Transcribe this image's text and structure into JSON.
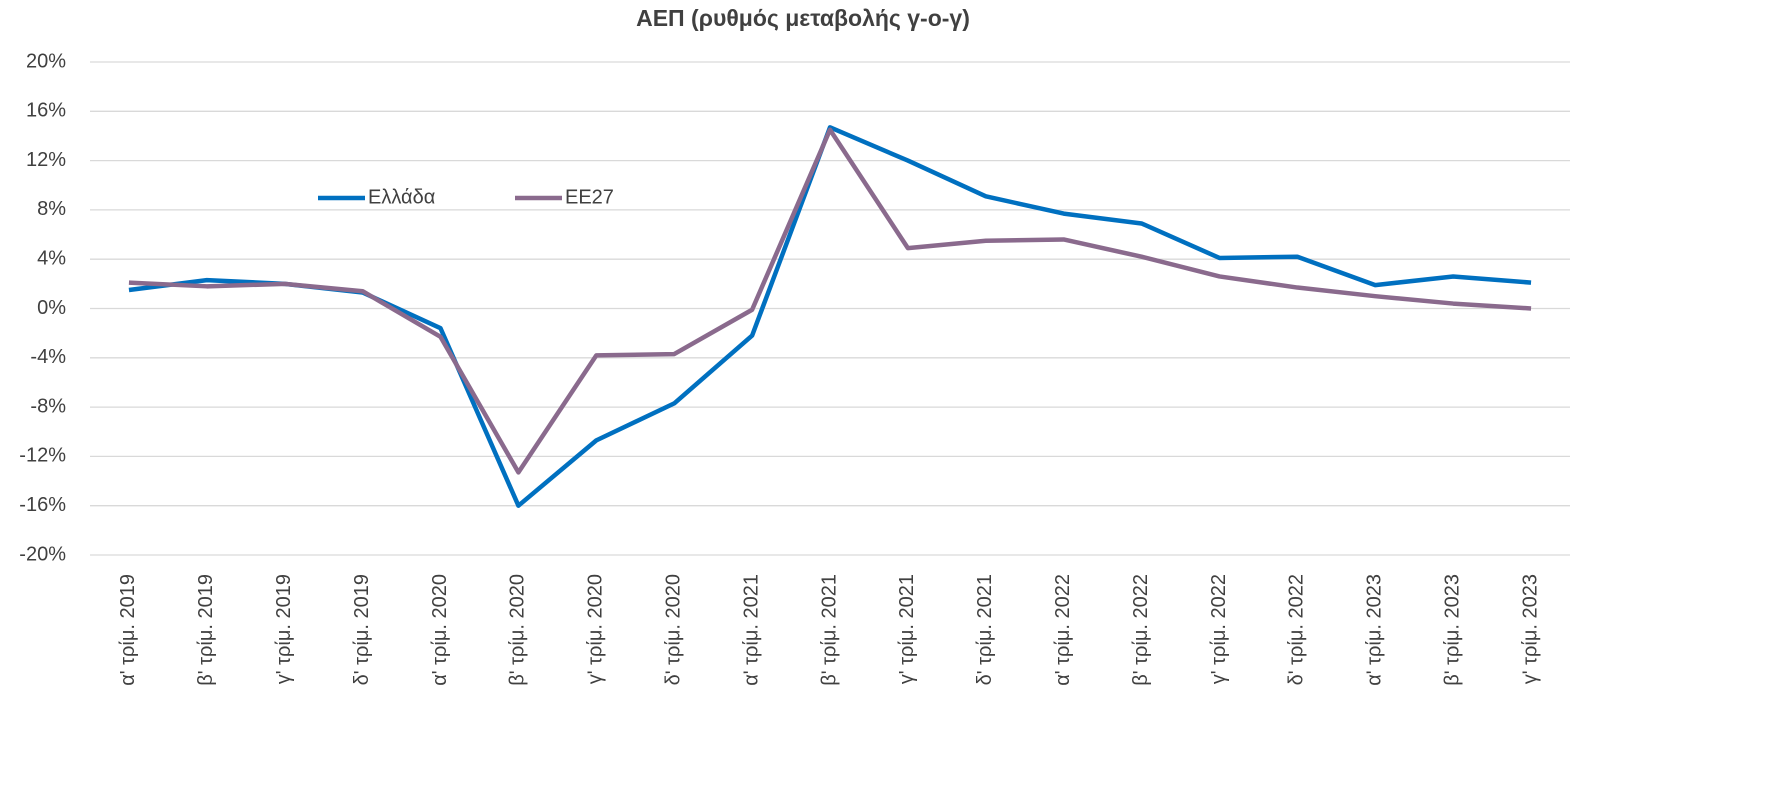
{
  "chart_data": {
    "type": "line",
    "title": "ΑΕΠ (ρυθμός μεταβολής γ-ο-γ)",
    "categories": [
      "α' τρίμ. 2019",
      "β' τρίμ. 2019",
      "γ' τρίμ. 2019",
      "δ' τρίμ. 2019",
      "α' τρίμ. 2020",
      "β' τρίμ. 2020",
      "γ' τρίμ. 2020",
      "δ' τρίμ. 2020",
      "α' τρίμ. 2021",
      "β' τρίμ. 2021",
      "γ' τρίμ. 2021",
      "δ' τρίμ. 2021",
      "α' τρίμ. 2022",
      "β' τρίμ. 2022",
      "γ' τρίμ. 2022",
      "δ' τρίμ. 2022",
      "α' τρίμ. 2023",
      "β' τρίμ. 2023",
      "γ' τρίμ. 2023"
    ],
    "series": [
      {
        "name": "Ελλάδα",
        "color": "#0070c0",
        "values": [
          1.5,
          2.3,
          2.0,
          1.3,
          -1.6,
          -16.0,
          -10.7,
          -7.7,
          -2.2,
          14.7,
          12.0,
          9.1,
          7.7,
          6.9,
          4.1,
          4.2,
          1.9,
          2.6,
          2.1
        ]
      },
      {
        "name": "ΕΕ27",
        "color": "#8a6a8d",
        "values": [
          2.1,
          1.8,
          2.0,
          1.4,
          -2.3,
          -13.3,
          -3.8,
          -3.7,
          -0.1,
          14.5,
          4.9,
          5.5,
          5.6,
          4.2,
          2.6,
          1.7,
          1.0,
          0.4,
          0.0
        ]
      }
    ],
    "ylim": [
      -20,
      20
    ],
    "yticks": [
      {
        "value": -20,
        "label": "-20%"
      },
      {
        "value": -16,
        "label": "-16%"
      },
      {
        "value": -12,
        "label": "-12%"
      },
      {
        "value": -8,
        "label": "-8%"
      },
      {
        "value": -4,
        "label": "-4%"
      },
      {
        "value": 0,
        "label": "0%"
      },
      {
        "value": 4,
        "label": "4%"
      },
      {
        "value": 8,
        "label": "8%"
      },
      {
        "value": 12,
        "label": "12%"
      },
      {
        "value": 16,
        "label": "16%"
      },
      {
        "value": 20,
        "label": "20%"
      }
    ],
    "grid": true
  }
}
